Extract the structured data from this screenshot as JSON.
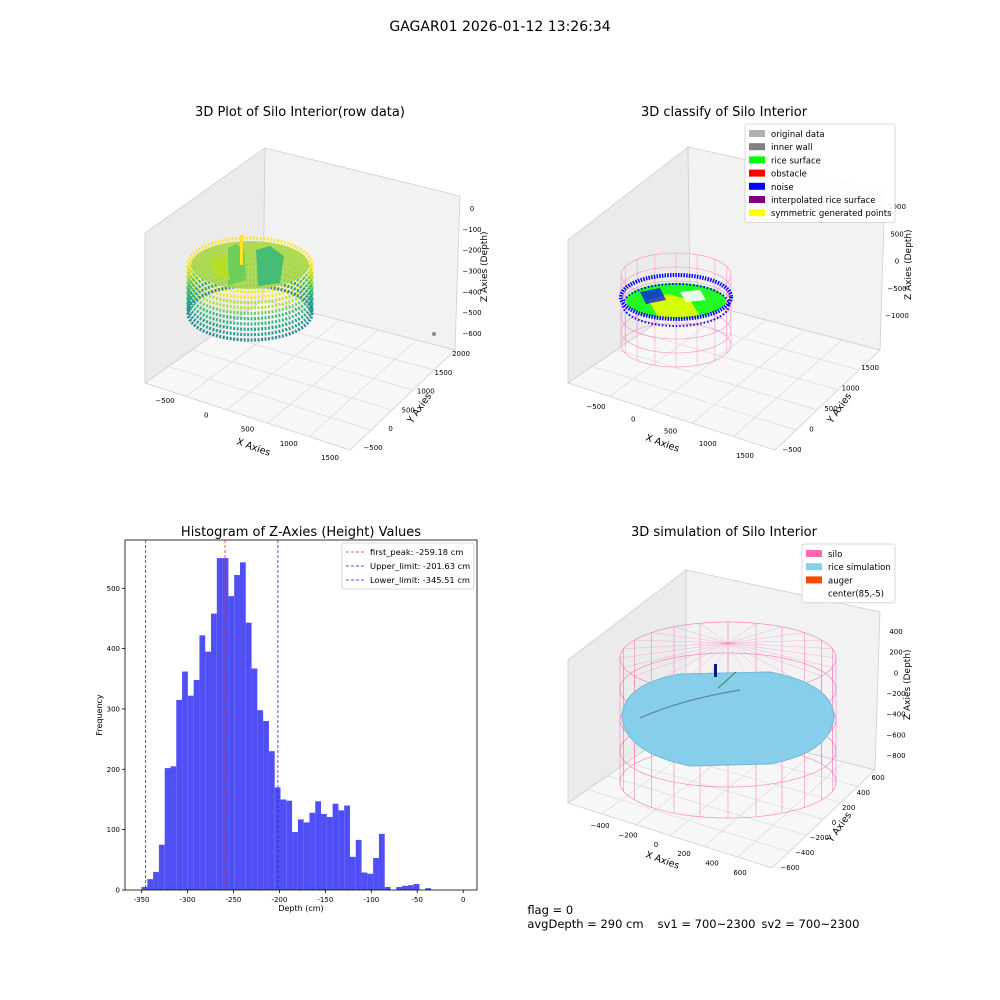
{
  "figure": {
    "suptitle": "GAGAR01 2026-01-12 13:26:34"
  },
  "footer": {
    "flag": "flag = 0",
    "avg_depth": "avgDepth = 290 cm",
    "sv1": "sv1 = 700~2300",
    "sv2": "sv2 = 700~2300"
  },
  "colors": {
    "hist_bar": "#4f4ff5",
    "peak_line": "#e03030",
    "limit_line": "#2020e0",
    "silo": "#ff69b4",
    "rice_sim": "#87ceeb",
    "auger": "#ff4500",
    "rice_surface": "#00ff00",
    "noise": "#0000ff"
  },
  "chart_data": [
    {
      "type": "scatter3d",
      "title": "3D Plot of Silo Interior(row data)",
      "xlabel": "X Axies",
      "ylabel": "Y Axies",
      "zlabel": "Z Axies (Depth)",
      "xticks": [
        "−500",
        "0",
        "500",
        "1000",
        "1500"
      ],
      "yticks": [
        "−500",
        "0",
        "500",
        "1000",
        "1500",
        "2000"
      ],
      "zticks": [
        "0",
        "−100",
        "−200",
        "−300",
        "−400",
        "−500",
        "−600"
      ],
      "zlim": [
        -620,
        20
      ]
    },
    {
      "type": "scatter3d",
      "title": "3D classify of Silo Interior",
      "xlabel": "X Axies",
      "ylabel": "Y Axies",
      "zlabel": "Z Axies (Depth)",
      "xticks": [
        "−500",
        "0",
        "500",
        "1000",
        "1500"
      ],
      "yticks": [
        "−500",
        "0",
        "500",
        "1000",
        "1500"
      ],
      "zticks": [
        "1000",
        "500",
        "0",
        "−500",
        "−1000"
      ],
      "legend": {
        "placement": "top-right",
        "entries": [
          {
            "label": "original data",
            "color": "#b0b0b0"
          },
          {
            "label": "inner wall",
            "color": "#808080"
          },
          {
            "label": "rice surface",
            "color": "#00ff00"
          },
          {
            "label": "obstacle",
            "color": "#ff0000"
          },
          {
            "label": "noise",
            "color": "#0000ff"
          },
          {
            "label": "interpolated rice surface",
            "color": "#800080"
          },
          {
            "label": "symmetric generated points",
            "color": "#ffff00"
          }
        ]
      }
    },
    {
      "type": "bar",
      "title": "Histogram of Z-Axies (Height) Values",
      "xlabel": "Depth (cm)",
      "ylabel": "Frequency",
      "xlim": [
        -368,
        15
      ],
      "ylim": [
        0,
        580
      ],
      "xticks": [
        -350,
        -300,
        -250,
        -200,
        -150,
        -100,
        -50,
        0
      ],
      "yticks": [
        0,
        100,
        200,
        300,
        400,
        500
      ],
      "bin_width": 6.3,
      "bin_start": -350,
      "values": [
        5,
        18,
        30,
        75,
        202,
        205,
        315,
        362,
        322,
        348,
        422,
        395,
        458,
        550,
        550,
        487,
        522,
        543,
        443,
        367,
        298,
        280,
        230,
        170,
        150,
        148,
        96,
        117,
        112,
        128,
        147,
        126,
        121,
        143,
        132,
        140,
        55,
        83,
        29,
        27,
        53,
        93,
        5,
        0,
        5,
        7,
        8,
        10,
        0,
        3
      ],
      "vlines": [
        {
          "x": -259.18,
          "label": "first_peak: -259.18 cm",
          "style": "peak"
        },
        {
          "x": -201.63,
          "label": "Upper_limit: -201.63 cm",
          "style": "limit"
        },
        {
          "x": -345.51,
          "label": "Lower_limit: -345.51 cm",
          "style": "limit"
        }
      ],
      "legend": {
        "placement": "top-right"
      }
    },
    {
      "type": "surface3d",
      "title": "3D simulation of Silo Interior",
      "xlabel": "X Axies",
      "ylabel": "Y Axies",
      "zlabel": "Z Axies (Depth)",
      "xticks": [
        "−400",
        "−200",
        "0",
        "200",
        "400",
        "600"
      ],
      "yticks": [
        "−600",
        "−400",
        "−200",
        "0",
        "200",
        "400",
        "600"
      ],
      "zticks": [
        "400",
        "200",
        "0",
        "−200",
        "−400",
        "−600",
        "−800"
      ],
      "legend": {
        "placement": "top-right",
        "entries": [
          {
            "label": "silo",
            "color": "#ff69b4"
          },
          {
            "label": "rice simulation",
            "color": "#87ceeb"
          },
          {
            "label": "auger",
            "color": "#ff4500"
          },
          {
            "label": "center(85,-5)",
            "color": ""
          }
        ]
      }
    }
  ]
}
